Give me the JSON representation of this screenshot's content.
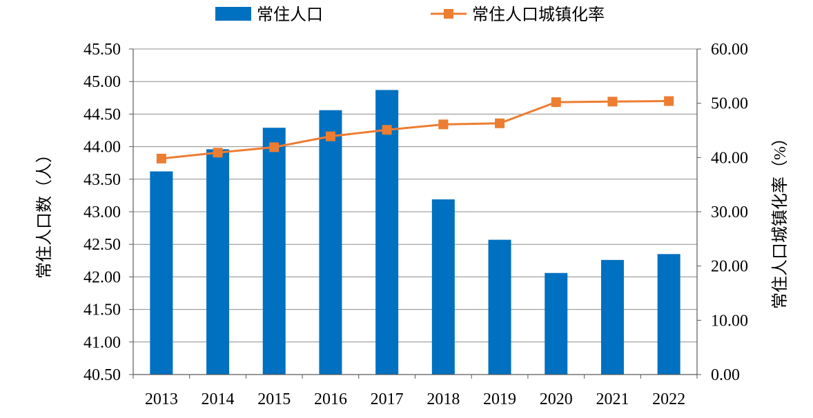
{
  "chart_data": {
    "type": "bar",
    "categories": [
      "2013",
      "2014",
      "2015",
      "2016",
      "2017",
      "2018",
      "2019",
      "2020",
      "2021",
      "2022"
    ],
    "series": [
      {
        "name": "常住人口",
        "type": "bar",
        "axis": "left",
        "color": "#0070C0",
        "values": [
          43.62,
          43.96,
          44.29,
          44.56,
          44.87,
          43.19,
          42.57,
          42.06,
          42.26,
          42.35
        ]
      },
      {
        "name": "常住人口城镇化率",
        "type": "line",
        "axis": "right",
        "color": "#ED7D31",
        "marker": "square",
        "values": [
          39.8,
          40.9,
          41.9,
          43.9,
          45.1,
          46.1,
          46.3,
          50.2,
          50.3,
          50.4
        ]
      }
    ],
    "y_left": {
      "label": "常住人口数（人）",
      "ylim": [
        40.5,
        45.5
      ],
      "ticks": [
        "40.50",
        "41.00",
        "41.50",
        "42.00",
        "42.50",
        "43.00",
        "43.50",
        "44.00",
        "44.50",
        "45.00",
        "45.50"
      ]
    },
    "y_right": {
      "label": "常住人口城镇化率（%）",
      "ylim": [
        0,
        60
      ],
      "ticks": [
        "0.00",
        "10.00",
        "20.00",
        "30.00",
        "40.00",
        "50.00",
        "60.00"
      ]
    },
    "grid": true,
    "legend": "top"
  }
}
